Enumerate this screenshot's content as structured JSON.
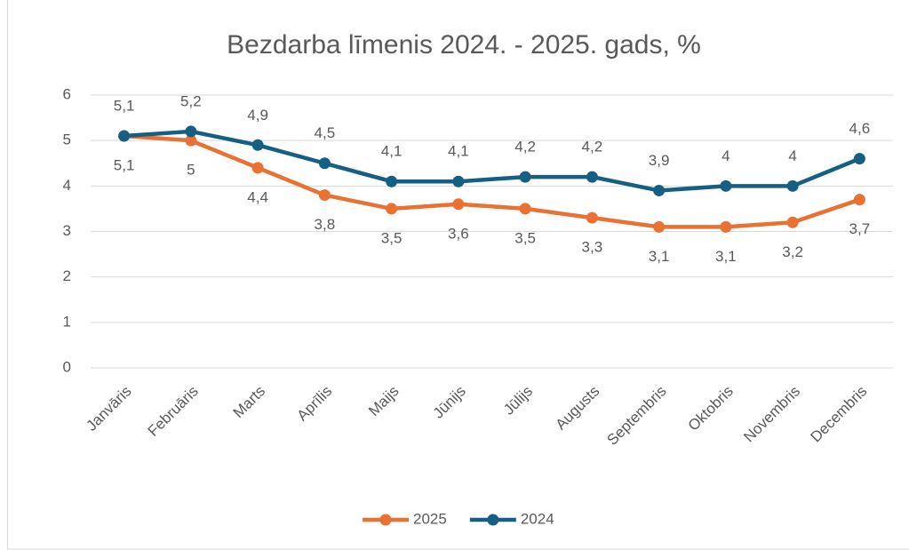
{
  "chart_data": {
    "type": "line",
    "title": "Bezdarba līmenis 2024. - 2025. gads, %",
    "categories": [
      "Janvāris",
      "Februāris",
      "Marts",
      "Aprīlis",
      "Maijs",
      "Jūnijs",
      "Jūlijs",
      "Augusts",
      "Septembris",
      "Oktobris",
      "Novembris",
      "Decembris"
    ],
    "series": [
      {
        "name": "2025",
        "color": "#e97132",
        "values": [
          5.1,
          5.0,
          4.4,
          3.8,
          3.5,
          3.6,
          3.5,
          3.3,
          3.1,
          3.1,
          3.2,
          3.7
        ],
        "value_labels": [
          "5,1",
          "5",
          "4,4",
          "3,8",
          "3,5",
          "3,6",
          "3,5",
          "3,3",
          "3,1",
          "3,1",
          "3,2",
          "3,7"
        ]
      },
      {
        "name": "2024",
        "color": "#156082",
        "values": [
          5.1,
          5.2,
          4.9,
          4.5,
          4.1,
          4.1,
          4.2,
          4.2,
          3.9,
          4.0,
          4.0,
          4.6
        ],
        "value_labels": [
          "5,1",
          "5,2",
          "4,9",
          "4,5",
          "4,1",
          "4,1",
          "4,2",
          "4,2",
          "3,9",
          "4",
          "4",
          "4,6"
        ]
      }
    ],
    "ylim": [
      0,
      6
    ],
    "yticks": [
      0,
      1,
      2,
      3,
      4,
      5,
      6
    ],
    "grid": true,
    "legend": "bottom"
  }
}
